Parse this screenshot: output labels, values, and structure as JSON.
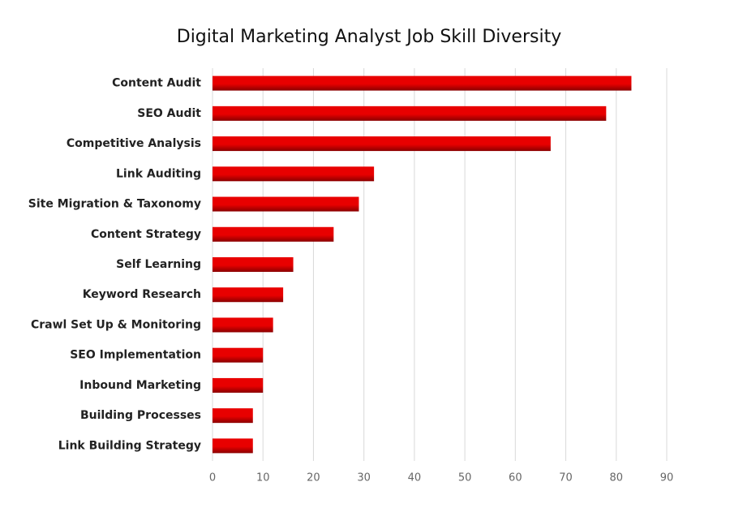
{
  "chart_data": {
    "type": "barh",
    "title": "Digital Marketing Analyst Job Skill Diversity",
    "categories": [
      "Content Audit",
      "SEO Audit",
      "Competitive Analysis",
      "Link Auditing",
      "Site Migration & Taxonomy",
      "Content Strategy",
      "Self Learning",
      "Keyword Research",
      "Crawl Set Up & Monitoring",
      "SEO Implementation",
      "Inbound Marketing",
      "Building Processes",
      "Link Building Strategy"
    ],
    "values": [
      83,
      78,
      67,
      32,
      29,
      24,
      16,
      14,
      12,
      10,
      10,
      8,
      8
    ],
    "color": "#e80000",
    "xlim": [
      0,
      90
    ],
    "xticks": [
      0,
      10,
      20,
      30,
      40,
      50,
      60,
      70,
      80,
      90
    ],
    "grid": true
  }
}
